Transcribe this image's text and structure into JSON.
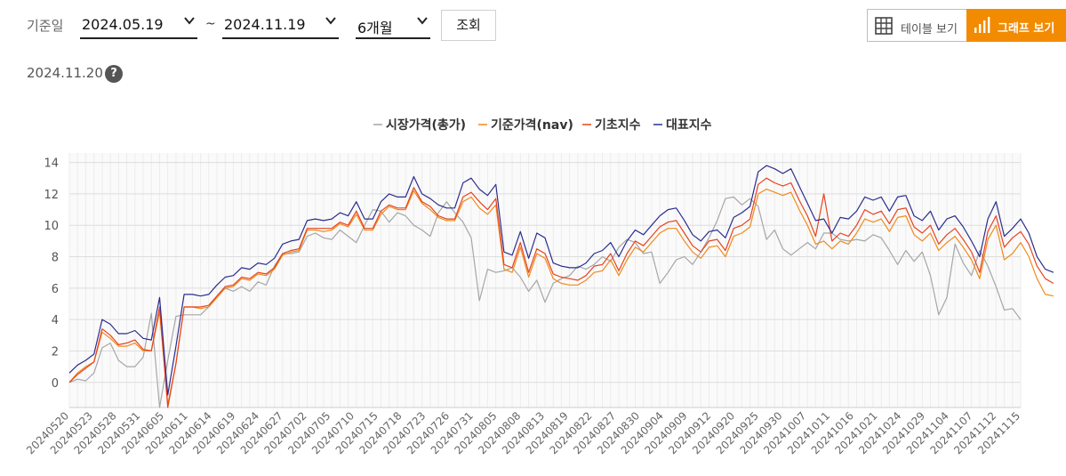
{
  "filter": {
    "label": "기준일",
    "start_date": "2024.05.19",
    "separator": "~",
    "end_date": "2024.11.19",
    "period": "6개월",
    "query_label": "조회"
  },
  "view_toggle": {
    "table_label": "테이블 보기",
    "graph_label": "그래프 보기",
    "active": "graph",
    "icons": [
      "grid-icon",
      "bar-chart-icon"
    ]
  },
  "as_of_date": "2024.11.20",
  "help_symbol": "?",
  "colors": {
    "accent": "#f28b00",
    "market_price": "#a6a6a6",
    "nav": "#f08a1c",
    "base_index": "#e8421e",
    "representative_index": "#2b2d8f"
  },
  "chart_data": {
    "type": "line",
    "title": "",
    "xlabel": "",
    "ylabel": "",
    "ylim": [
      -1.6,
      14.6
    ],
    "yticks": [
      0,
      2,
      4,
      6,
      8,
      10,
      12,
      14
    ],
    "grid": true,
    "legend_position": "top-center",
    "x_tick_labels": [
      "20240520",
      "20240523",
      "20240528",
      "20240531",
      "20240605",
      "20240611",
      "20240614",
      "20240619",
      "20240624",
      "20240627",
      "20240702",
      "20240705",
      "20240710",
      "20240715",
      "20240718",
      "20240723",
      "20240726",
      "20240731",
      "20240805",
      "20240808",
      "20240813",
      "20240819",
      "20240822",
      "20240827",
      "20240830",
      "20240904",
      "20240909",
      "20240912",
      "20240920",
      "20240925",
      "20240930",
      "20241007",
      "20241011",
      "20241016",
      "20241021",
      "20241024",
      "20241029",
      "20241104",
      "20241107",
      "20241112",
      "20241115"
    ],
    "series": [
      {
        "name": "시장가격(총가)",
        "values": [
          0,
          0.2,
          0.1,
          0.6,
          2.2,
          2.5,
          1.4,
          1.0,
          1.0,
          1.6,
          4.4,
          -1.6,
          1.4,
          4.2,
          4.3,
          4.3,
          4.3,
          4.8,
          5.4,
          6.0,
          5.8,
          6.1,
          5.8,
          6.4,
          6.2,
          7.4,
          8.2,
          8.2,
          8.3,
          9.3,
          9.5,
          9.2,
          9.1,
          9.7,
          9.3,
          8.9,
          10.0,
          11.0,
          10.9,
          10.2,
          10.8,
          10.6,
          10.0,
          9.7,
          9.3,
          10.8,
          11.5,
          10.8,
          10.2,
          9.2,
          5.2,
          7.2,
          7.0,
          7.1,
          7.3,
          6.7,
          5.8,
          6.5,
          5.1,
          6.3,
          6.6,
          6.8,
          7.4,
          7.2,
          7.5,
          8.0,
          7.7,
          8.6,
          9.1,
          8.9,
          8.2,
          8.3,
          6.3,
          7.0,
          7.8,
          8.0,
          7.5,
          8.3,
          9.2,
          10.3,
          11.7,
          11.8,
          11.3,
          11.7,
          11.2,
          9.1,
          9.7,
          8.5,
          8.1,
          8.5,
          8.9,
          8.5,
          9.5,
          9.5,
          9.1,
          9.0,
          9.1,
          9.0,
          9.4,
          9.2,
          8.4,
          7.5,
          8.4,
          7.7,
          8.3,
          6.8,
          4.3,
          5.4,
          8.8,
          7.6,
          6.8,
          8.4,
          7.4,
          6.1,
          4.6,
          4.7,
          4.0
        ]
      },
      {
        "name": "기준가격(nav)",
        "values": [
          0,
          0.6,
          1.0,
          1.3,
          3.2,
          2.8,
          2.3,
          2.3,
          2.5,
          2.0,
          2.0,
          4.5,
          -1.4,
          1.2,
          4.8,
          4.8,
          4.7,
          4.8,
          5.4,
          6.0,
          6.1,
          6.6,
          6.5,
          6.9,
          6.8,
          7.2,
          8.1,
          8.3,
          8.4,
          9.7,
          9.7,
          9.6,
          9.7,
          10.1,
          9.9,
          10.7,
          9.7,
          9.7,
          10.7,
          11.2,
          11.0,
          11.0,
          12.2,
          11.4,
          11.0,
          10.5,
          10.3,
          10.3,
          11.5,
          11.8,
          11.1,
          10.7,
          11.3,
          7.2,
          7.0,
          8.6,
          6.7,
          8.2,
          7.9,
          6.6,
          6.3,
          6.2,
          6.2,
          6.5,
          7.0,
          7.1,
          7.8,
          6.8,
          7.8,
          8.6,
          8.3,
          8.9,
          9.5,
          9.8,
          9.8,
          9.0,
          8.3,
          7.9,
          8.6,
          8.7,
          8.0,
          9.3,
          9.5,
          9.9,
          12.0,
          12.3,
          12.1,
          11.9,
          12.1,
          11.0,
          10.0,
          8.8,
          9.0,
          8.5,
          9.0,
          8.8,
          9.5,
          10.4,
          10.2,
          10.4,
          9.6,
          10.5,
          10.6,
          9.4,
          9.0,
          9.5,
          8.4,
          8.9,
          9.3,
          8.6,
          7.8,
          6.6,
          9.1,
          10.0,
          7.8,
          8.2,
          8.9,
          8.0,
          6.6,
          5.6,
          5.5
        ]
      },
      {
        "name": "기초지수",
        "values": [
          0,
          0.5,
          0.9,
          1.3,
          3.4,
          3.0,
          2.4,
          2.5,
          2.7,
          2.1,
          2.0,
          4.8,
          -1.6,
          1.2,
          4.8,
          4.8,
          4.8,
          4.9,
          5.5,
          6.1,
          6.2,
          6.7,
          6.6,
          7.0,
          6.9,
          7.3,
          8.2,
          8.4,
          8.5,
          9.8,
          9.8,
          9.8,
          9.8,
          10.2,
          10.0,
          10.9,
          9.8,
          9.8,
          10.9,
          11.3,
          11.1,
          11.1,
          12.4,
          11.5,
          11.2,
          10.6,
          10.4,
          10.4,
          11.8,
          12.1,
          11.5,
          11.0,
          11.7,
          7.5,
          7.3,
          8.9,
          7.0,
          8.5,
          8.2,
          6.9,
          6.7,
          6.6,
          6.5,
          6.8,
          7.4,
          7.5,
          8.2,
          7.1,
          8.2,
          9.0,
          8.7,
          9.3,
          9.9,
          10.2,
          10.3,
          9.5,
          8.7,
          8.3,
          9.0,
          9.1,
          8.4,
          9.8,
          10.0,
          10.4,
          12.6,
          13.0,
          12.7,
          12.5,
          12.7,
          11.6,
          10.6,
          9.3,
          12.0,
          9.0,
          9.5,
          9.3,
          10.0,
          11.0,
          10.7,
          10.9,
          10.1,
          11.0,
          11.1,
          9.9,
          9.5,
          10.0,
          8.8,
          9.4,
          9.8,
          9.1,
          8.3,
          7.0,
          9.6,
          10.6,
          8.6,
          9.2,
          9.6,
          8.8,
          7.4,
          6.6,
          6.3
        ]
      },
      {
        "name": "대표지수",
        "values": [
          0.6,
          1.1,
          1.4,
          1.8,
          4.0,
          3.7,
          3.1,
          3.1,
          3.3,
          2.8,
          2.7,
          5.4,
          -0.8,
          2.3,
          5.6,
          5.6,
          5.5,
          5.6,
          6.2,
          6.7,
          6.8,
          7.3,
          7.2,
          7.6,
          7.5,
          7.9,
          8.8,
          9.0,
          9.1,
          10.3,
          10.4,
          10.3,
          10.4,
          10.8,
          10.6,
          11.5,
          10.4,
          10.4,
          11.5,
          12.0,
          11.8,
          11.8,
          13.1,
          12.0,
          11.7,
          11.3,
          11.1,
          11.1,
          12.7,
          13.0,
          12.3,
          11.9,
          12.6,
          8.3,
          8.1,
          9.6,
          7.9,
          9.5,
          9.2,
          7.6,
          7.4,
          7.3,
          7.3,
          7.6,
          8.2,
          8.4,
          8.9,
          8.0,
          9.0,
          9.7,
          9.4,
          10.0,
          10.6,
          11.0,
          11.1,
          10.3,
          9.4,
          9.0,
          9.6,
          9.7,
          9.2,
          10.5,
          10.8,
          11.2,
          13.4,
          13.8,
          13.6,
          13.3,
          13.6,
          12.5,
          11.4,
          10.3,
          10.4,
          9.5,
          10.5,
          10.4,
          10.9,
          11.8,
          11.6,
          11.8,
          10.9,
          11.8,
          11.9,
          10.6,
          10.3,
          10.9,
          9.7,
          10.4,
          10.6,
          9.9,
          9.0,
          8.0,
          10.4,
          11.5,
          9.3,
          9.8,
          10.4,
          9.5,
          8.0,
          7.2,
          7.0
        ]
      }
    ]
  }
}
